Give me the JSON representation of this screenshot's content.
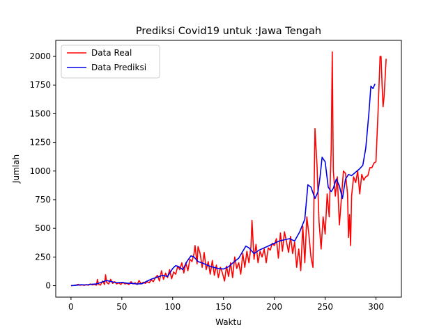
{
  "chart_data": {
    "type": "line",
    "title": "Prediksi Covid19 untuk :Jawa Tengah",
    "xlabel": "Waktu",
    "ylabel": "Jumlah",
    "xlim": [
      -15,
      325
    ],
    "ylim": [
      -100,
      2140
    ],
    "xticks": [
      0,
      50,
      100,
      150,
      200,
      250,
      300
    ],
    "yticks": [
      0,
      250,
      500,
      750,
      1000,
      1250,
      1500,
      1750,
      2000
    ],
    "grid": false,
    "legend_position": "top-left",
    "series": [
      {
        "name": "Data Real",
        "color": "#ff0000",
        "points": [
          [
            0,
            0
          ],
          [
            3,
            2
          ],
          [
            5,
            5
          ],
          [
            7,
            12
          ],
          [
            9,
            3
          ],
          [
            11,
            8
          ],
          [
            13,
            2
          ],
          [
            15,
            10
          ],
          [
            17,
            4
          ],
          [
            19,
            15
          ],
          [
            21,
            6
          ],
          [
            23,
            10
          ],
          [
            25,
            4
          ],
          [
            26,
            55
          ],
          [
            27,
            12
          ],
          [
            29,
            5
          ],
          [
            31,
            40
          ],
          [
            33,
            10
          ],
          [
            34,
            95
          ],
          [
            35,
            30
          ],
          [
            37,
            15
          ],
          [
            39,
            55
          ],
          [
            41,
            20
          ],
          [
            43,
            35
          ],
          [
            45,
            15
          ],
          [
            47,
            25
          ],
          [
            49,
            10
          ],
          [
            51,
            30
          ],
          [
            53,
            15
          ],
          [
            55,
            20
          ],
          [
            57,
            10
          ],
          [
            59,
            35
          ],
          [
            61,
            15
          ],
          [
            63,
            25
          ],
          [
            65,
            10
          ],
          [
            67,
            45
          ],
          [
            69,
            15
          ],
          [
            71,
            30
          ],
          [
            73,
            20
          ],
          [
            75,
            35
          ],
          [
            77,
            25
          ],
          [
            79,
            50
          ],
          [
            81,
            35
          ],
          [
            83,
            70
          ],
          [
            85,
            90
          ],
          [
            87,
            40
          ],
          [
            89,
            130
          ],
          [
            91,
            55
          ],
          [
            93,
            110
          ],
          [
            95,
            70
          ],
          [
            97,
            140
          ],
          [
            99,
            60
          ],
          [
            101,
            120
          ],
          [
            103,
            100
          ],
          [
            105,
            170
          ],
          [
            107,
            140
          ],
          [
            109,
            200
          ],
          [
            111,
            110
          ],
          [
            113,
            200
          ],
          [
            115,
            130
          ],
          [
            117,
            230
          ],
          [
            119,
            210
          ],
          [
            121,
            280
          ],
          [
            122,
            350
          ],
          [
            124,
            190
          ],
          [
            125,
            340
          ],
          [
            127,
            280
          ],
          [
            129,
            160
          ],
          [
            131,
            290
          ],
          [
            133,
            140
          ],
          [
            135,
            210
          ],
          [
            137,
            100
          ],
          [
            139,
            220
          ],
          [
            141,
            90
          ],
          [
            143,
            180
          ],
          [
            145,
            70
          ],
          [
            147,
            160
          ],
          [
            149,
            110
          ],
          [
            151,
            40
          ],
          [
            153,
            170
          ],
          [
            155,
            80
          ],
          [
            157,
            200
          ],
          [
            159,
            70
          ],
          [
            161,
            250
          ],
          [
            163,
            150
          ],
          [
            165,
            200
          ],
          [
            167,
            100
          ],
          [
            169,
            280
          ],
          [
            171,
            160
          ],
          [
            173,
            300
          ],
          [
            175,
            200
          ],
          [
            177,
            340
          ],
          [
            178,
            570
          ],
          [
            180,
            230
          ],
          [
            182,
            360
          ],
          [
            184,
            200
          ],
          [
            186,
            300
          ],
          [
            188,
            250
          ],
          [
            190,
            320
          ],
          [
            192,
            200
          ],
          [
            194,
            330
          ],
          [
            196,
            310
          ],
          [
            198,
            370
          ],
          [
            200,
            350
          ],
          [
            202,
            410
          ],
          [
            204,
            240
          ],
          [
            206,
            460
          ],
          [
            208,
            300
          ],
          [
            210,
            470
          ],
          [
            212,
            380
          ],
          [
            214,
            290
          ],
          [
            216,
            430
          ],
          [
            218,
            280
          ],
          [
            220,
            380
          ],
          [
            222,
            160
          ],
          [
            224,
            320
          ],
          [
            226,
            130
          ],
          [
            228,
            520
          ],
          [
            230,
            200
          ],
          [
            232,
            600
          ],
          [
            234,
            450
          ],
          [
            236,
            250
          ],
          [
            238,
            160
          ],
          [
            240,
            1370
          ],
          [
            242,
            1050
          ],
          [
            244,
            560
          ],
          [
            246,
            320
          ],
          [
            248,
            600
          ],
          [
            250,
            450
          ],
          [
            252,
            800
          ],
          [
            254,
            600
          ],
          [
            256,
            1200
          ],
          [
            257,
            2040
          ],
          [
            258,
            1000
          ],
          [
            260,
            780
          ],
          [
            262,
            950
          ],
          [
            264,
            530
          ],
          [
            266,
            760
          ],
          [
            268,
            1000
          ],
          [
            270,
            980
          ],
          [
            272,
            800
          ],
          [
            273,
            420
          ],
          [
            274,
            620
          ],
          [
            275,
            350
          ],
          [
            276,
            780
          ],
          [
            278,
            950
          ],
          [
            280,
            900
          ],
          [
            282,
            1000
          ],
          [
            284,
            800
          ],
          [
            286,
            970
          ],
          [
            288,
            920
          ],
          [
            290,
            950
          ],
          [
            292,
            960
          ],
          [
            294,
            1030
          ],
          [
            296,
            1030
          ],
          [
            298,
            1070
          ],
          [
            300,
            1080
          ],
          [
            302,
            1500
          ],
          [
            304,
            2000
          ],
          [
            305,
            2000
          ],
          [
            306,
            1750
          ],
          [
            307,
            1560
          ],
          [
            308,
            1650
          ],
          [
            310,
            1980
          ]
        ]
      },
      {
        "name": "Data Prediksi",
        "color": "#0000e6",
        "points": [
          [
            0,
            0
          ],
          [
            5,
            4
          ],
          [
            10,
            8
          ],
          [
            15,
            6
          ],
          [
            20,
            12
          ],
          [
            25,
            15
          ],
          [
            30,
            30
          ],
          [
            35,
            45
          ],
          [
            40,
            35
          ],
          [
            45,
            25
          ],
          [
            50,
            28
          ],
          [
            55,
            22
          ],
          [
            60,
            20
          ],
          [
            65,
            14
          ],
          [
            70,
            18
          ],
          [
            75,
            40
          ],
          [
            80,
            60
          ],
          [
            85,
            75
          ],
          [
            90,
            90
          ],
          [
            95,
            80
          ],
          [
            100,
            150
          ],
          [
            103,
            175
          ],
          [
            106,
            165
          ],
          [
            110,
            140
          ],
          [
            114,
            210
          ],
          [
            118,
            260
          ],
          [
            121,
            250
          ],
          [
            125,
            210
          ],
          [
            130,
            195
          ],
          [
            135,
            175
          ],
          [
            140,
            160
          ],
          [
            145,
            150
          ],
          [
            150,
            145
          ],
          [
            155,
            165
          ],
          [
            160,
            205
          ],
          [
            165,
            240
          ],
          [
            169,
            300
          ],
          [
            172,
            345
          ],
          [
            175,
            330
          ],
          [
            180,
            280
          ],
          [
            185,
            310
          ],
          [
            190,
            330
          ],
          [
            195,
            350
          ],
          [
            200,
            370
          ],
          [
            205,
            390
          ],
          [
            210,
            400
          ],
          [
            215,
            410
          ],
          [
            220,
            390
          ],
          [
            225,
            470
          ],
          [
            230,
            580
          ],
          [
            233,
            880
          ],
          [
            236,
            860
          ],
          [
            240,
            760
          ],
          [
            243,
            820
          ],
          [
            245,
            950
          ],
          [
            247,
            1120
          ],
          [
            250,
            1080
          ],
          [
            253,
            860
          ],
          [
            256,
            820
          ],
          [
            258,
            850
          ],
          [
            261,
            930
          ],
          [
            264,
            870
          ],
          [
            267,
            760
          ],
          [
            270,
            930
          ],
          [
            273,
            970
          ],
          [
            276,
            960
          ],
          [
            280,
            990
          ],
          [
            284,
            1020
          ],
          [
            287,
            1050
          ],
          [
            290,
            1200
          ],
          [
            293,
            1500
          ],
          [
            295,
            1740
          ],
          [
            297,
            1720
          ],
          [
            299,
            1760
          ]
        ]
      }
    ]
  }
}
